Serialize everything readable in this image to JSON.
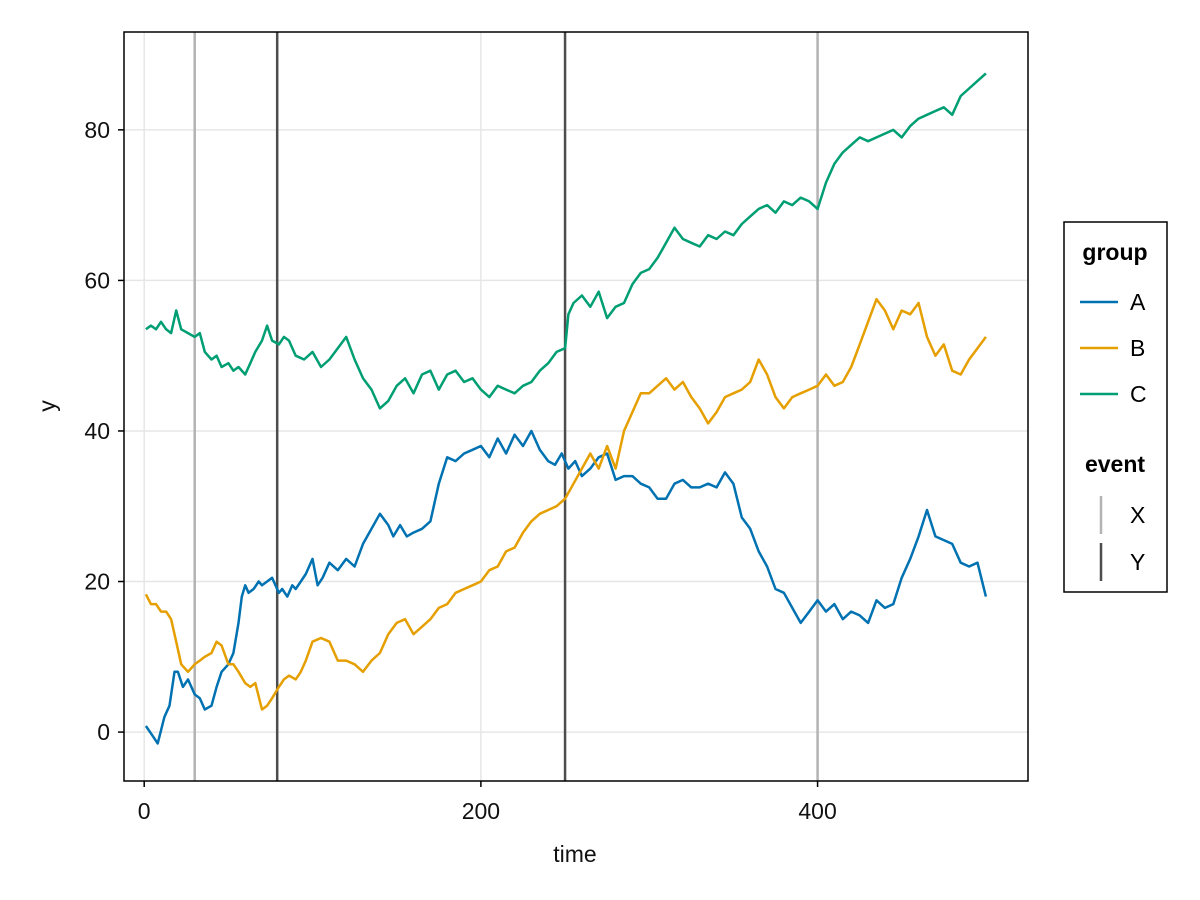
{
  "chart_data": {
    "type": "line",
    "title": "",
    "xlabel": "time",
    "ylabel": "y",
    "xlim": [
      -12,
      525
    ],
    "ylim": [
      -6.5,
      93
    ],
    "x_ticks": [
      0,
      200,
      400
    ],
    "y_ticks": [
      0,
      20,
      40,
      60,
      80
    ],
    "x_tick_labels": [
      "0",
      "200",
      "400"
    ],
    "y_tick_labels": [
      "0",
      "20",
      "40",
      "60",
      "80"
    ],
    "grid": true,
    "legend_position": "right",
    "legend_groups": [
      {
        "title": "group",
        "entries": [
          "A",
          "B",
          "C"
        ]
      },
      {
        "title": "event",
        "entries": [
          "X",
          "Y"
        ]
      }
    ],
    "series": [
      {
        "name": "A",
        "color": "#0072B2",
        "x": [
          1,
          5,
          8,
          12,
          15,
          18,
          20,
          23,
          26,
          30,
          33,
          36,
          40,
          43,
          46,
          50,
          53,
          56,
          58,
          60,
          62,
          65,
          68,
          70,
          73,
          76,
          78,
          80,
          82,
          85,
          88,
          90,
          93,
          96,
          100,
          103,
          106,
          110,
          115,
          120,
          125,
          130,
          135,
          140,
          145,
          148,
          152,
          156,
          160,
          165,
          170,
          175,
          180,
          185,
          190,
          195,
          200,
          205,
          210,
          215,
          220,
          225,
          230,
          235,
          240,
          244,
          248,
          252,
          256,
          260,
          265,
          270,
          275,
          280,
          285,
          290,
          295,
          300,
          305,
          310,
          315,
          320,
          325,
          330,
          335,
          340,
          345,
          350,
          355,
          360,
          365,
          370,
          375,
          380,
          385,
          390,
          395,
          400,
          405,
          410,
          415,
          420,
          425,
          430,
          435,
          440,
          445,
          450,
          455,
          460,
          465,
          470,
          475,
          480,
          485,
          490,
          495,
          500
        ],
        "y": [
          0.8,
          -0.5,
          -1.5,
          2.0,
          3.5,
          8.0,
          8.0,
          6.0,
          7.0,
          5.0,
          4.5,
          3.0,
          3.5,
          6.0,
          8.0,
          9.0,
          10.5,
          14.5,
          18.0,
          19.5,
          18.5,
          19.0,
          20.0,
          19.5,
          20.0,
          20.5,
          19.5,
          18.5,
          19.0,
          18.0,
          19.5,
          19.0,
          20.0,
          21.0,
          23.0,
          19.5,
          20.5,
          22.5,
          21.5,
          23.0,
          22.0,
          25.0,
          27.0,
          29.0,
          27.5,
          26.0,
          27.5,
          26.0,
          26.5,
          27.0,
          28.0,
          33.0,
          36.5,
          36.0,
          37.0,
          37.5,
          38.0,
          36.5,
          39.0,
          37.0,
          39.5,
          38.0,
          40.0,
          37.5,
          36.0,
          35.5,
          37.0,
          35.0,
          36.0,
          34.0,
          35.0,
          36.5,
          37.0,
          33.5,
          34.0,
          34.0,
          33.0,
          32.5,
          31.0,
          31.0,
          33.0,
          33.5,
          32.5,
          32.5,
          33.0,
          32.5,
          34.5,
          33.0,
          28.5,
          27.0,
          24.0,
          22.0,
          19.0,
          18.5,
          16.5,
          14.5,
          16.0,
          17.5,
          16.0,
          17.0,
          15.0,
          16.0,
          15.5,
          14.5,
          17.5,
          16.5,
          17.0,
          20.5,
          23.0,
          26.0,
          29.5,
          26.0,
          25.5,
          25.0,
          22.5,
          22.0,
          22.5,
          18.0
        ]
      },
      {
        "name": "B",
        "color": "#E69F00",
        "x": [
          1,
          4,
          7,
          10,
          13,
          16,
          19,
          22,
          26,
          30,
          33,
          36,
          40,
          43,
          46,
          50,
          53,
          56,
          60,
          63,
          66,
          70,
          73,
          76,
          80,
          83,
          86,
          90,
          93,
          96,
          100,
          105,
          110,
          115,
          120,
          125,
          130,
          135,
          140,
          145,
          150,
          155,
          160,
          165,
          170,
          175,
          180,
          185,
          190,
          195,
          200,
          205,
          210,
          215,
          220,
          225,
          230,
          235,
          240,
          245,
          250,
          255,
          260,
          265,
          270,
          275,
          280,
          285,
          290,
          295,
          300,
          305,
          310,
          315,
          320,
          325,
          330,
          335,
          340,
          345,
          350,
          355,
          360,
          365,
          370,
          375,
          380,
          385,
          390,
          395,
          400,
          405,
          410,
          415,
          420,
          425,
          430,
          435,
          440,
          445,
          450,
          455,
          460,
          465,
          470,
          475,
          480,
          485,
          490,
          495,
          500
        ],
        "y": [
          18.3,
          17.0,
          17.0,
          16.0,
          16.0,
          15.0,
          12.0,
          9.0,
          8.0,
          9.0,
          9.5,
          10.0,
          10.5,
          12.0,
          11.5,
          9.0,
          9.0,
          8.0,
          6.5,
          6.0,
          6.5,
          3.0,
          3.5,
          4.5,
          6.0,
          7.0,
          7.5,
          7.0,
          8.0,
          9.5,
          12.0,
          12.5,
          12.0,
          9.5,
          9.5,
          9.0,
          8.0,
          9.5,
          10.5,
          13.0,
          14.5,
          15.0,
          13.0,
          14.0,
          15.0,
          16.5,
          17.0,
          18.5,
          19.0,
          19.5,
          20.0,
          21.5,
          22.0,
          24.0,
          24.5,
          26.5,
          28.0,
          29.0,
          29.5,
          30.0,
          31.0,
          33.0,
          35.0,
          37.0,
          35.0,
          38.0,
          35.0,
          40.0,
          42.5,
          45.0,
          45.0,
          46.0,
          47.0,
          45.5,
          46.5,
          44.5,
          43.0,
          41.0,
          42.5,
          44.5,
          45.0,
          45.5,
          46.5,
          49.5,
          47.5,
          44.5,
          43.0,
          44.5,
          45.0,
          45.5,
          46.0,
          47.5,
          46.0,
          46.5,
          48.5,
          51.5,
          54.5,
          57.5,
          56.0,
          53.5,
          56.0,
          55.5,
          57.0,
          52.5,
          50.0,
          51.5,
          48.0,
          47.5,
          49.5,
          51.0,
          52.5
        ]
      },
      {
        "name": "C",
        "color": "#009E73",
        "x": [
          1,
          4,
          7,
          10,
          13,
          16,
          19,
          22,
          26,
          30,
          33,
          36,
          40,
          43,
          46,
          50,
          53,
          56,
          60,
          63,
          66,
          70,
          73,
          76,
          80,
          83,
          86,
          90,
          95,
          100,
          105,
          110,
          115,
          120,
          125,
          130,
          135,
          140,
          145,
          150,
          155,
          160,
          165,
          170,
          175,
          180,
          185,
          190,
          195,
          200,
          205,
          210,
          215,
          220,
          225,
          230,
          235,
          240,
          245,
          250,
          252,
          255,
          260,
          265,
          270,
          275,
          280,
          285,
          290,
          295,
          300,
          305,
          310,
          315,
          320,
          325,
          330,
          335,
          340,
          345,
          350,
          355,
          360,
          365,
          370,
          375,
          380,
          385,
          390,
          395,
          400,
          405,
          410,
          415,
          420,
          425,
          430,
          435,
          440,
          445,
          450,
          455,
          460,
          465,
          470,
          475,
          480,
          485,
          490,
          495,
          500
        ],
        "y": [
          53.5,
          54.0,
          53.5,
          54.5,
          53.5,
          53.0,
          56.0,
          53.5,
          53.0,
          52.5,
          53.0,
          50.5,
          49.5,
          50.0,
          48.5,
          49.0,
          48.0,
          48.5,
          47.5,
          49.0,
          50.5,
          52.0,
          54.0,
          52.0,
          51.5,
          52.5,
          52.0,
          50.0,
          49.5,
          50.5,
          48.5,
          49.5,
          51.0,
          52.5,
          49.5,
          47.0,
          45.5,
          43.0,
          44.0,
          46.0,
          47.0,
          45.0,
          47.5,
          48.0,
          45.5,
          47.5,
          48.0,
          46.5,
          47.0,
          45.5,
          44.5,
          46.0,
          45.5,
          45.0,
          46.0,
          46.5,
          48.0,
          49.0,
          50.5,
          51.0,
          55.5,
          57.0,
          58.0,
          56.5,
          58.5,
          55.0,
          56.5,
          57.0,
          59.5,
          61.0,
          61.5,
          63.0,
          65.0,
          67.0,
          65.5,
          65.0,
          64.5,
          66.0,
          65.5,
          66.5,
          66.0,
          67.5,
          68.5,
          69.5,
          70.0,
          69.0,
          70.5,
          70.0,
          71.0,
          70.5,
          69.5,
          73.0,
          75.5,
          77.0,
          78.0,
          79.0,
          78.5,
          79.0,
          79.5,
          80.0,
          79.0,
          80.5,
          81.5,
          82.0,
          82.5,
          83.0,
          82.0,
          84.5,
          85.5,
          86.5,
          87.5
        ]
      }
    ],
    "event_lines": [
      {
        "event": "X",
        "x": 30,
        "color": "#B3B3B3"
      },
      {
        "event": "Y",
        "x": 79,
        "color": "#4D4D4D"
      },
      {
        "event": "Y",
        "x": 250,
        "color": "#4D4D4D"
      },
      {
        "event": "X",
        "x": 400,
        "color": "#B3B3B3"
      }
    ],
    "event_colors": {
      "X": "#B3B3B3",
      "Y": "#4D4D4D"
    }
  }
}
